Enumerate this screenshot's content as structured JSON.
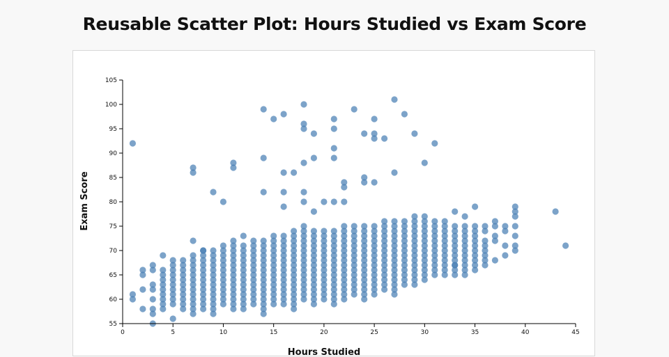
{
  "chart_data": {
    "type": "scatter",
    "title": "Reusable Scatter Plot: Hours Studied vs Exam Score",
    "xlabel": "Hours Studied",
    "ylabel": "Exam Score",
    "xlim": [
      0,
      45
    ],
    "ylim": [
      55,
      105
    ],
    "xticks": [
      0,
      5,
      10,
      15,
      20,
      25,
      30,
      35,
      40,
      45
    ],
    "yticks": [
      55,
      60,
      65,
      70,
      75,
      80,
      85,
      90,
      95,
      100,
      105
    ],
    "grid": false,
    "color": "#4a80b4",
    "points": [
      [
        1,
        61
      ],
      [
        1,
        60
      ],
      [
        1,
        92
      ],
      [
        2,
        66
      ],
      [
        2,
        65
      ],
      [
        2,
        62
      ],
      [
        2,
        58
      ],
      [
        3,
        67
      ],
      [
        3,
        66
      ],
      [
        3,
        63
      ],
      [
        3,
        62
      ],
      [
        3,
        60
      ],
      [
        3,
        58
      ],
      [
        3,
        57
      ],
      [
        3,
        55
      ],
      [
        4,
        69
      ],
      [
        4,
        66
      ],
      [
        4,
        65
      ],
      [
        4,
        64
      ],
      [
        4,
        63
      ],
      [
        4,
        62
      ],
      [
        4,
        61
      ],
      [
        4,
        60
      ],
      [
        4,
        59
      ],
      [
        4,
        58
      ],
      [
        5,
        68
      ],
      [
        5,
        67
      ],
      [
        5,
        66
      ],
      [
        5,
        65
      ],
      [
        5,
        64
      ],
      [
        5,
        63
      ],
      [
        5,
        62
      ],
      [
        5,
        61
      ],
      [
        5,
        60
      ],
      [
        5,
        59
      ],
      [
        5,
        56
      ],
      [
        6,
        68
      ],
      [
        6,
        67
      ],
      [
        6,
        66
      ],
      [
        6,
        65
      ],
      [
        6,
        64
      ],
      [
        6,
        63
      ],
      [
        6,
        62
      ],
      [
        6,
        61
      ],
      [
        6,
        60
      ],
      [
        6,
        59
      ],
      [
        6,
        58
      ],
      [
        7,
        72
      ],
      [
        7,
        87
      ],
      [
        7,
        86
      ],
      [
        8,
        70
      ],
      [
        9,
        82
      ],
      [
        10,
        80
      ],
      [
        11,
        88
      ],
      [
        11,
        87
      ],
      [
        12,
        73
      ],
      [
        14,
        99
      ],
      [
        14,
        89
      ],
      [
        14,
        82
      ],
      [
        14,
        57
      ],
      [
        15,
        97
      ],
      [
        16,
        98
      ],
      [
        16,
        86
      ],
      [
        16,
        82
      ],
      [
        16,
        79
      ],
      [
        17,
        86
      ],
      [
        18,
        100
      ],
      [
        18,
        96
      ],
      [
        18,
        95
      ],
      [
        18,
        88
      ],
      [
        18,
        82
      ],
      [
        18,
        80
      ],
      [
        19,
        94
      ],
      [
        19,
        89
      ],
      [
        19,
        78
      ],
      [
        20,
        80
      ],
      [
        21,
        97
      ],
      [
        21,
        95
      ],
      [
        21,
        91
      ],
      [
        21,
        89
      ],
      [
        21,
        80
      ],
      [
        22,
        84
      ],
      [
        22,
        83
      ],
      [
        22,
        80
      ],
      [
        23,
        99
      ],
      [
        24,
        94
      ],
      [
        24,
        85
      ],
      [
        24,
        84
      ],
      [
        25,
        97
      ],
      [
        25,
        94
      ],
      [
        25,
        93
      ],
      [
        25,
        84
      ],
      [
        26,
        93
      ],
      [
        27,
        101
      ],
      [
        27,
        86
      ],
      [
        28,
        98
      ],
      [
        29,
        94
      ],
      [
        30,
        88
      ],
      [
        31,
        92
      ],
      [
        33,
        78
      ],
      [
        33,
        67
      ],
      [
        34,
        77
      ],
      [
        34,
        65
      ],
      [
        35,
        79
      ],
      [
        35,
        75
      ],
      [
        35,
        74
      ],
      [
        35,
        73
      ],
      [
        35,
        72
      ],
      [
        35,
        71
      ],
      [
        35,
        70
      ],
      [
        35,
        69
      ],
      [
        35,
        68
      ],
      [
        35,
        67
      ],
      [
        35,
        66
      ],
      [
        36,
        75
      ],
      [
        36,
        74
      ],
      [
        36,
        72
      ],
      [
        36,
        71
      ],
      [
        36,
        70
      ],
      [
        36,
        69
      ],
      [
        36,
        68
      ],
      [
        36,
        67
      ],
      [
        37,
        76
      ],
      [
        37,
        75
      ],
      [
        37,
        73
      ],
      [
        37,
        72
      ],
      [
        37,
        68
      ],
      [
        38,
        75
      ],
      [
        38,
        74
      ],
      [
        38,
        71
      ],
      [
        38,
        69
      ],
      [
        39,
        79
      ],
      [
        39,
        78
      ],
      [
        39,
        77
      ],
      [
        39,
        75
      ],
      [
        39,
        73
      ],
      [
        39,
        71
      ],
      [
        39,
        70
      ],
      [
        43,
        78
      ],
      [
        44,
        71
      ]
    ],
    "bands": [
      {
        "x": 7,
        "lo": 57,
        "hi": 69
      },
      {
        "x": 8,
        "lo": 58,
        "hi": 70
      },
      {
        "x": 9,
        "lo": 57,
        "hi": 70
      },
      {
        "x": 10,
        "lo": 59,
        "hi": 71
      },
      {
        "x": 11,
        "lo": 58,
        "hi": 72
      },
      {
        "x": 12,
        "lo": 58,
        "hi": 71
      },
      {
        "x": 13,
        "lo": 59,
        "hi": 72
      },
      {
        "x": 14,
        "lo": 58,
        "hi": 72
      },
      {
        "x": 15,
        "lo": 59,
        "hi": 73
      },
      {
        "x": 16,
        "lo": 59,
        "hi": 73
      },
      {
        "x": 17,
        "lo": 58,
        "hi": 74
      },
      {
        "x": 18,
        "lo": 60,
        "hi": 75
      },
      {
        "x": 19,
        "lo": 59,
        "hi": 74
      },
      {
        "x": 20,
        "lo": 60,
        "hi": 74
      },
      {
        "x": 21,
        "lo": 59,
        "hi": 74
      },
      {
        "x": 22,
        "lo": 60,
        "hi": 75
      },
      {
        "x": 23,
        "lo": 61,
        "hi": 75
      },
      {
        "x": 24,
        "lo": 60,
        "hi": 75
      },
      {
        "x": 25,
        "lo": 61,
        "hi": 75
      },
      {
        "x": 26,
        "lo": 62,
        "hi": 76
      },
      {
        "x": 27,
        "lo": 61,
        "hi": 76
      },
      {
        "x": 28,
        "lo": 63,
        "hi": 76
      },
      {
        "x": 29,
        "lo": 63,
        "hi": 77
      },
      {
        "x": 30,
        "lo": 64,
        "hi": 77
      },
      {
        "x": 31,
        "lo": 65,
        "hi": 76
      },
      {
        "x": 32,
        "lo": 65,
        "hi": 76
      },
      {
        "x": 33,
        "lo": 65,
        "hi": 75
      },
      {
        "x": 34,
        "lo": 66,
        "hi": 75
      }
    ]
  }
}
